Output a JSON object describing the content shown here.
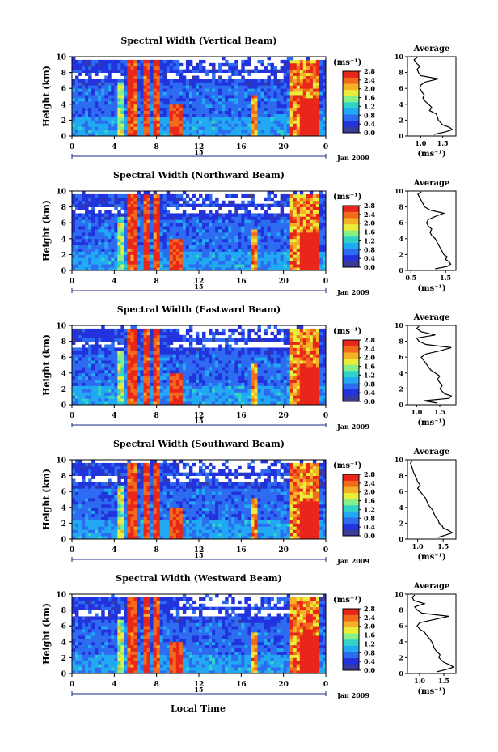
{
  "common": {
    "y_label": "Height (km)",
    "y_ticks": [
      "0",
      "2",
      "4",
      "6",
      "8",
      "10"
    ],
    "x_ticks": [
      "0",
      "4",
      "8",
      "12",
      "16",
      "20",
      "0"
    ],
    "date_day": "15",
    "date_month": "Jan 2009",
    "xlabel_bottom": "Local Time",
    "cbar_unit": "(ms⁻¹)",
    "cbar_ticks": [
      "0.0",
      "0.4",
      "0.8",
      "1.2",
      "1.6",
      "2.0",
      "2.4",
      "2.8"
    ],
    "avg_title": "Average",
    "avg_unit": "(ms⁻¹)",
    "colors": [
      "#3a3a9a",
      "#2233dd",
      "#2d6cf0",
      "#21a9f2",
      "#31d3c8",
      "#86ef86",
      "#e8ee3a",
      "#f5b025",
      "#f26a1c",
      "#e8261a"
    ]
  },
  "chart_data": [
    {
      "type": "heatmap",
      "title": "Spectral Width (Vertical Beam)",
      "xlabel": "Local Time",
      "ylabel": "Height (km)",
      "xlim": [
        0,
        24
      ],
      "ylim": [
        0,
        10
      ],
      "clim": [
        0,
        2.8
      ],
      "avg_profile": {
        "xticks": [
          "1.0",
          "1.5"
        ],
        "xlim": [
          0.7,
          1.8
        ],
        "height": [
          0.2,
          0.5,
          0.8,
          1.1,
          1.4,
          1.7,
          2.0,
          2.4,
          2.8,
          3.2,
          3.6,
          4.0,
          4.4,
          4.8,
          5.2,
          5.6,
          6.0,
          6.4,
          6.8,
          7.2,
          7.6,
          8.0,
          8.4,
          8.8,
          9.2,
          9.6,
          9.9
        ],
        "width": [
          1.3,
          1.55,
          1.72,
          1.65,
          1.5,
          1.45,
          1.4,
          1.38,
          1.35,
          1.2,
          1.25,
          1.18,
          1.1,
          1.05,
          1.08,
          1.02,
          0.98,
          1.0,
          1.1,
          1.4,
          1.0,
          0.95,
          0.92,
          0.98,
          0.9,
          0.85,
          0.92
        ]
      }
    },
    {
      "type": "heatmap",
      "title": "Spectral Width (Northward Beam)",
      "xlabel": "Local Time",
      "ylabel": "Height (km)",
      "xlim": [
        0,
        24
      ],
      "ylim": [
        0,
        10
      ],
      "clim": [
        0,
        2.8
      ],
      "avg_profile": {
        "xticks": [
          "0.5",
          "1.5"
        ],
        "xlim": [
          0.4,
          1.8
        ],
        "height": [
          0.2,
          0.5,
          0.8,
          1.1,
          1.4,
          1.7,
          2.0,
          2.4,
          2.8,
          3.2,
          3.6,
          4.0,
          4.4,
          4.8,
          5.2,
          5.6,
          6.0,
          6.4,
          6.8,
          7.2,
          7.6,
          8.0,
          8.4,
          8.8,
          9.2,
          9.6,
          9.9
        ],
        "width": [
          1.2,
          1.55,
          1.65,
          1.6,
          1.5,
          1.55,
          1.45,
          1.4,
          1.35,
          1.3,
          1.25,
          1.2,
          1.1,
          1.05,
          1.1,
          1.0,
          0.95,
          1.0,
          1.2,
          1.45,
          1.05,
          0.9,
          0.85,
          0.8,
          0.75,
          0.7,
          0.8
        ]
      }
    },
    {
      "type": "heatmap",
      "title": "Spectral Width (Eastward Beam)",
      "xlabel": "Local Time",
      "ylabel": "Height (km)",
      "xlim": [
        0,
        24
      ],
      "ylim": [
        0,
        10
      ],
      "clim": [
        0,
        2.8
      ],
      "avg_profile": {
        "xticks": [
          "1.0",
          "1.5"
        ],
        "xlim": [
          0.8,
          1.85
        ],
        "height": [
          0.2,
          0.5,
          0.8,
          1.1,
          1.4,
          1.7,
          2.0,
          2.4,
          2.8,
          3.2,
          3.6,
          4.0,
          4.4,
          4.8,
          5.2,
          5.6,
          6.0,
          6.4,
          6.8,
          7.2,
          7.6,
          8.0,
          8.4,
          8.8,
          9.2,
          9.6,
          9.9
        ],
        "width": [
          1.45,
          1.15,
          1.7,
          1.75,
          1.6,
          1.55,
          1.5,
          1.55,
          1.5,
          1.45,
          1.5,
          1.4,
          1.3,
          1.25,
          1.2,
          1.15,
          1.1,
          1.2,
          1.5,
          1.75,
          1.2,
          1.05,
          1.0,
          1.4,
          1.1,
          1.0,
          1.05
        ]
      }
    },
    {
      "type": "heatmap",
      "title": "Spectral Width (Southward Beam)",
      "xlabel": "Local Time",
      "ylabel": "Height (km)",
      "xlim": [
        0,
        24
      ],
      "ylim": [
        0,
        10
      ],
      "clim": [
        0,
        2.8
      ],
      "avg_profile": {
        "xticks": [
          "1.0",
          "1.5"
        ],
        "xlim": [
          0.8,
          1.75
        ],
        "height": [
          0.2,
          0.5,
          0.8,
          1.1,
          1.4,
          1.7,
          2.0,
          2.4,
          2.8,
          3.2,
          3.6,
          4.0,
          4.4,
          4.8,
          5.2,
          5.6,
          6.0,
          6.4,
          6.8,
          7.2,
          7.6,
          8.0,
          8.4,
          8.8,
          9.2,
          9.6,
          9.9
        ],
        "width": [
          1.4,
          1.55,
          1.68,
          1.6,
          1.5,
          1.48,
          1.42,
          1.4,
          1.35,
          1.32,
          1.3,
          1.25,
          1.2,
          1.18,
          1.15,
          1.1,
          1.05,
          1.0,
          1.05,
          1.0,
          0.98,
          0.95,
          0.92,
          0.9,
          0.88,
          0.86,
          0.9
        ]
      }
    },
    {
      "type": "heatmap",
      "title": "Spectral Width (Westward Beam)",
      "xlabel": "Local Time",
      "ylabel": "Height (km)",
      "xlim": [
        0,
        24
      ],
      "ylim": [
        0,
        10
      ],
      "clim": [
        0,
        2.8
      ],
      "avg_profile": {
        "xticks": [
          "1.0",
          "1.5"
        ],
        "xlim": [
          0.75,
          1.75
        ],
        "height": [
          0.2,
          0.5,
          0.8,
          1.1,
          1.4,
          1.7,
          2.0,
          2.4,
          2.8,
          3.2,
          3.6,
          4.0,
          4.4,
          4.8,
          5.2,
          5.6,
          6.0,
          6.4,
          6.8,
          7.2,
          7.6,
          8.0,
          8.4,
          8.8,
          9.2,
          9.6,
          9.9
        ],
        "width": [
          1.35,
          1.55,
          1.7,
          1.62,
          1.5,
          1.45,
          1.4,
          1.42,
          1.35,
          1.3,
          1.28,
          1.25,
          1.2,
          1.15,
          1.1,
          1.0,
          0.95,
          1.0,
          1.3,
          1.6,
          1.05,
          0.95,
          0.9,
          1.1,
          0.88,
          0.85,
          0.9
        ]
      }
    }
  ]
}
